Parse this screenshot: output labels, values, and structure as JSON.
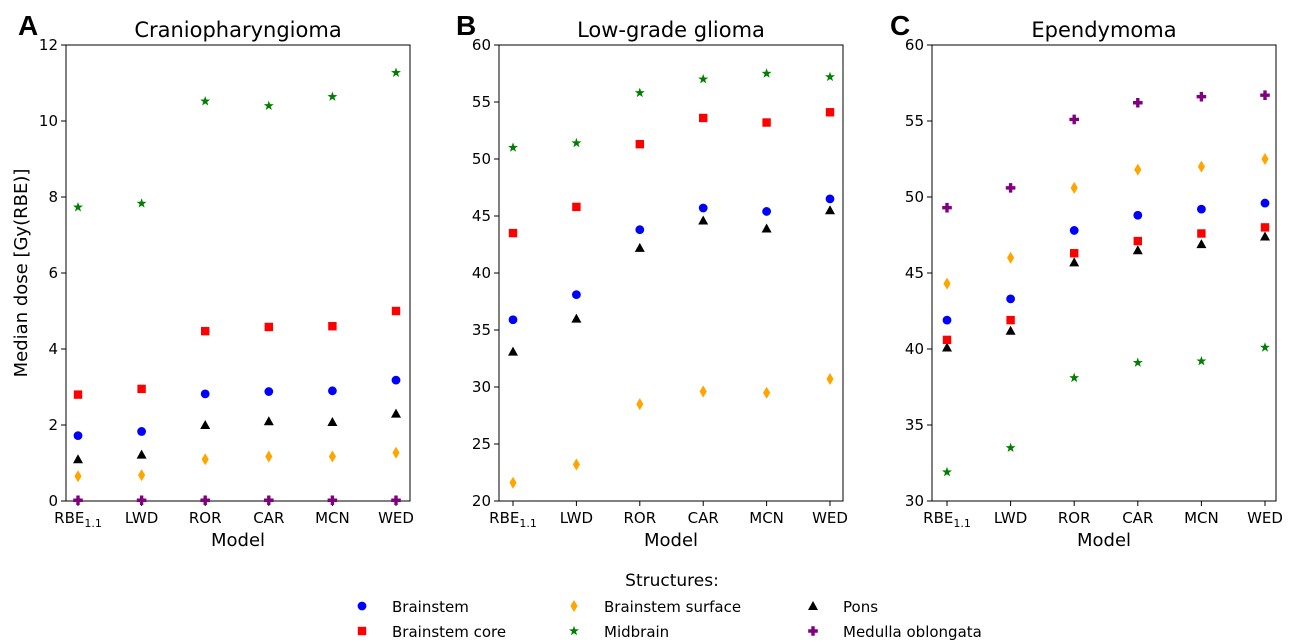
{
  "chart_data": [
    {
      "type": "scatter",
      "panel_label": "A",
      "title": "Craniopharyngioma",
      "xlabel": "Model",
      "ylabel": "Median dose [Gy(RBE)]",
      "categories": [
        "RBE1.1",
        "LWD",
        "ROR",
        "CAR",
        "MCN",
        "WED"
      ],
      "ylim": [
        0,
        12
      ],
      "yticks": [
        0,
        2,
        4,
        6,
        8,
        10,
        12
      ],
      "series": [
        {
          "name": "Brainstem",
          "values": [
            1.72,
            1.83,
            2.82,
            2.88,
            2.9,
            3.18
          ]
        },
        {
          "name": "Brainstem core",
          "values": [
            2.8,
            2.95,
            4.47,
            4.58,
            4.6,
            5.0
          ]
        },
        {
          "name": "Brainstem surface",
          "values": [
            0.65,
            0.68,
            1.1,
            1.17,
            1.17,
            1.27
          ]
        },
        {
          "name": "Midbrain",
          "values": [
            7.73,
            7.83,
            10.52,
            10.4,
            10.64,
            11.27
          ]
        },
        {
          "name": "Pons",
          "values": [
            1.1,
            1.22,
            2.0,
            2.1,
            2.08,
            2.3
          ]
        },
        {
          "name": "Medulla oblongata",
          "values": [
            0.02,
            0.02,
            0.02,
            0.02,
            0.02,
            0.02
          ]
        }
      ]
    },
    {
      "type": "scatter",
      "panel_label": "B",
      "title": "Low-grade glioma",
      "xlabel": "Model",
      "ylabel": "",
      "categories": [
        "RBE1.1",
        "LWD",
        "ROR",
        "CAR",
        "MCN",
        "WED"
      ],
      "ylim": [
        20,
        60
      ],
      "yticks": [
        20,
        25,
        30,
        35,
        40,
        45,
        50,
        55,
        60
      ],
      "series": [
        {
          "name": "Brainstem",
          "values": [
            35.9,
            38.1,
            43.8,
            45.7,
            45.4,
            46.5
          ]
        },
        {
          "name": "Brainstem core",
          "values": [
            43.5,
            45.8,
            51.3,
            53.6,
            53.2,
            54.1
          ]
        },
        {
          "name": "Brainstem surface",
          "values": [
            21.6,
            23.2,
            28.5,
            29.6,
            29.5,
            30.7
          ]
        },
        {
          "name": "Midbrain",
          "values": [
            51.0,
            51.4,
            55.8,
            57.0,
            57.5,
            57.2
          ]
        },
        {
          "name": "Pons",
          "values": [
            33.1,
            36.0,
            42.2,
            44.6,
            43.9,
            45.5
          ]
        },
        {
          "name": "Medulla oblongata",
          "values": []
        }
      ]
    },
    {
      "type": "scatter",
      "panel_label": "C",
      "title": "Ependymoma",
      "xlabel": "Model",
      "ylabel": "",
      "categories": [
        "RBE1.1",
        "LWD",
        "ROR",
        "CAR",
        "MCN",
        "WED"
      ],
      "ylim": [
        30,
        60
      ],
      "yticks": [
        30,
        35,
        40,
        45,
        50,
        55,
        60
      ],
      "series": [
        {
          "name": "Brainstem",
          "values": [
            41.9,
            43.3,
            47.8,
            48.8,
            49.2,
            49.6
          ]
        },
        {
          "name": "Brainstem core",
          "values": [
            40.6,
            41.9,
            46.3,
            47.1,
            47.6,
            48.0
          ]
        },
        {
          "name": "Brainstem surface",
          "values": [
            44.3,
            46.0,
            50.6,
            51.8,
            52.0,
            52.5
          ]
        },
        {
          "name": "Midbrain",
          "values": [
            31.9,
            33.5,
            38.1,
            39.1,
            39.2,
            40.1
          ]
        },
        {
          "name": "Pons",
          "values": [
            40.1,
            41.2,
            45.7,
            46.5,
            46.9,
            47.4
          ]
        },
        {
          "name": "Medulla oblongata",
          "values": [
            49.3,
            50.6,
            55.1,
            56.2,
            56.6,
            56.7
          ]
        }
      ]
    }
  ],
  "legend": {
    "title": "Structures:",
    "placement": "bottom-center",
    "items": [
      {
        "name": "Brainstem",
        "color": "#0000ff",
        "marker": "circle"
      },
      {
        "name": "Brainstem core",
        "color": "#ff0000",
        "marker": "square"
      },
      {
        "name": "Brainstem surface",
        "color": "#ffa500",
        "marker": "diamond"
      },
      {
        "name": "Midbrain",
        "color": "#008000",
        "marker": "star"
      },
      {
        "name": "Pons",
        "color": "#000000",
        "marker": "triangle"
      },
      {
        "name": "Medulla oblongata",
        "color": "#800080",
        "marker": "plus"
      }
    ]
  }
}
